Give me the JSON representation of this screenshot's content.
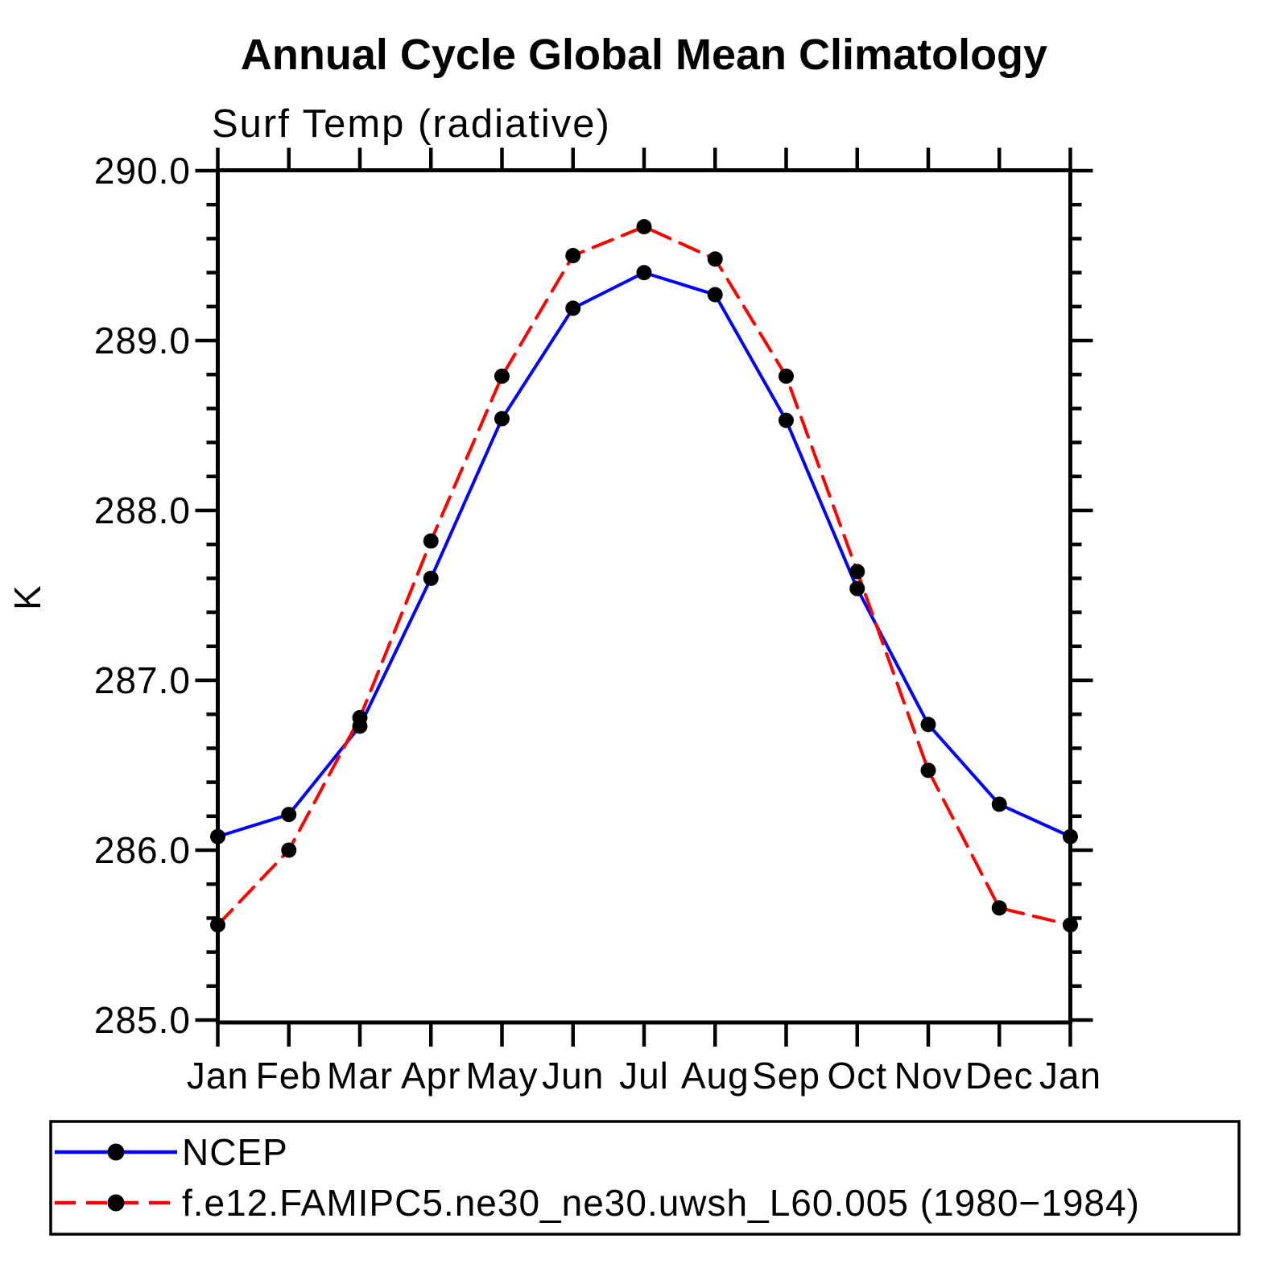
{
  "chart_data": {
    "type": "line",
    "title": "Annual Cycle Global Mean Climatology",
    "subtitle": "Surf Temp (radiative)",
    "xlabel": "",
    "ylabel": "K",
    "categories": [
      "Jan",
      "Feb",
      "Mar",
      "Apr",
      "May",
      "Jun",
      "Jul",
      "Aug",
      "Sep",
      "Oct",
      "Nov",
      "Dec",
      "Jan"
    ],
    "ylim": [
      285.0,
      290.0
    ],
    "ytick_major_step": 1.0,
    "ytick_minor_step": 0.2,
    "ytick_labels": [
      "285.0",
      "286.0",
      "287.0",
      "288.0",
      "289.0",
      "290.0"
    ],
    "grid": false,
    "legend_position": "bottom-left-box",
    "axis_color": "#000000",
    "series": [
      {
        "name": "NCEP",
        "line_style": "solid",
        "line_color": "#0000ff",
        "marker": "filled-circle",
        "marker_color": "#000000",
        "values": [
          286.08,
          286.21,
          286.73,
          287.6,
          288.54,
          289.19,
          289.4,
          289.27,
          288.53,
          287.54,
          286.74,
          286.27,
          286.08
        ]
      },
      {
        "name": "f.e12.FAMIPC5.ne30_ne30.uwsh_L60.005 (1980−1984)",
        "line_style": "dashed",
        "line_color": "#ff0000",
        "marker": "filled-circle",
        "marker_color": "#000000",
        "values": [
          285.56,
          286.0,
          286.78,
          287.82,
          288.79,
          289.5,
          289.67,
          289.48,
          288.79,
          287.64,
          286.47,
          285.66,
          285.56
        ]
      }
    ]
  }
}
